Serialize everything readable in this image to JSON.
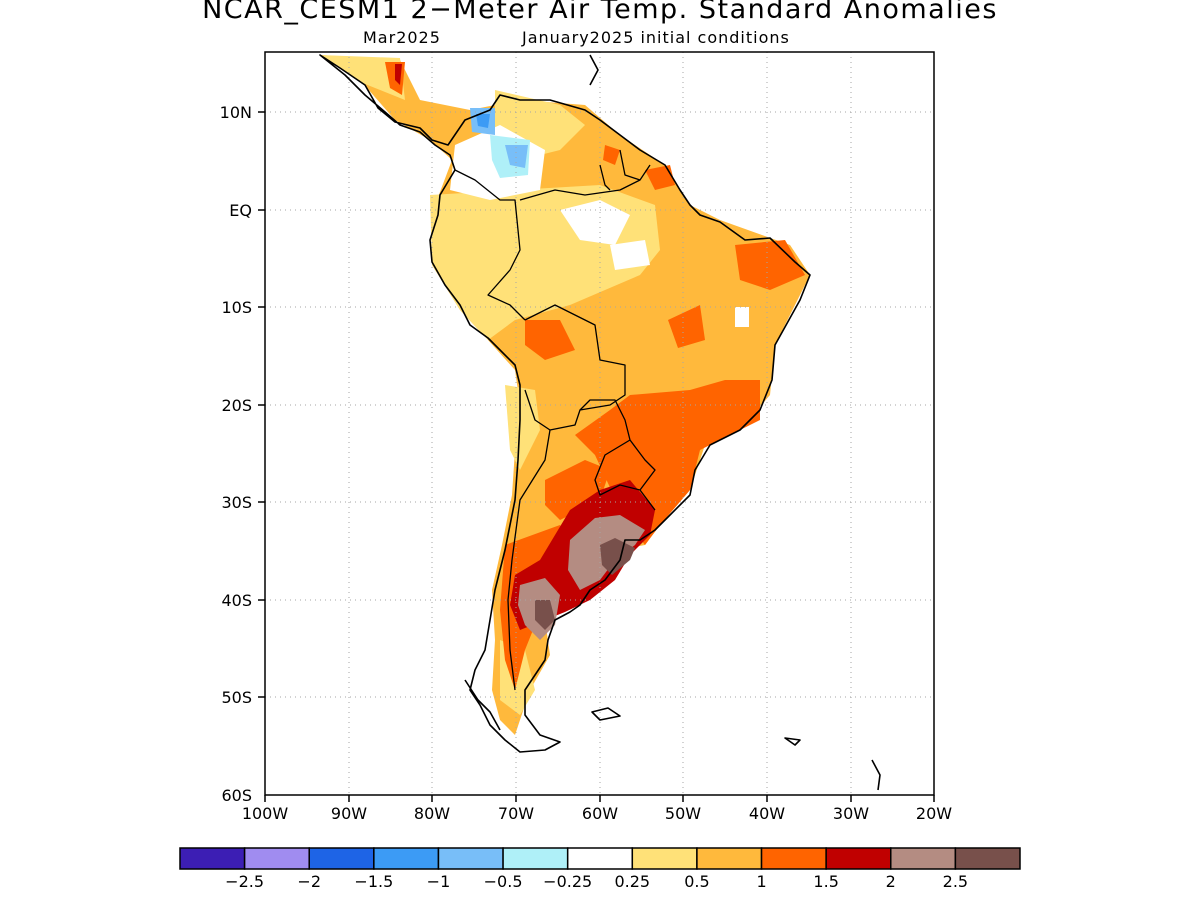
{
  "title": "NCAR_CESM1 2−Meter Air Temp. Standard Anomalies",
  "valid_month": "Mar2025",
  "init": "January2025 initial conditions",
  "lat_labels": [
    "10N",
    "EQ",
    "10S",
    "20S",
    "30S",
    "40S",
    "50S",
    "60S"
  ],
  "lon_labels": [
    "100W",
    "90W",
    "80W",
    "70W",
    "60W",
    "50W",
    "40W",
    "30W",
    "20W"
  ],
  "colorbar": {
    "colors": [
      "#3c1eb4",
      "#a08cf0",
      "#1e64e6",
      "#3c9bf5",
      "#78bef8",
      "#aff0f8",
      "#ffffff",
      "#ffe178",
      "#ffb93c",
      "#ff6400",
      "#c00000",
      "#b48c82",
      "#78504b"
    ],
    "labels": [
      "−2.5",
      "−2",
      "−1.5",
      "−1",
      "−0.5",
      "−0.25",
      "0.25",
      "0.5",
      "1",
      "1.5",
      "2",
      "2.5"
    ]
  }
}
